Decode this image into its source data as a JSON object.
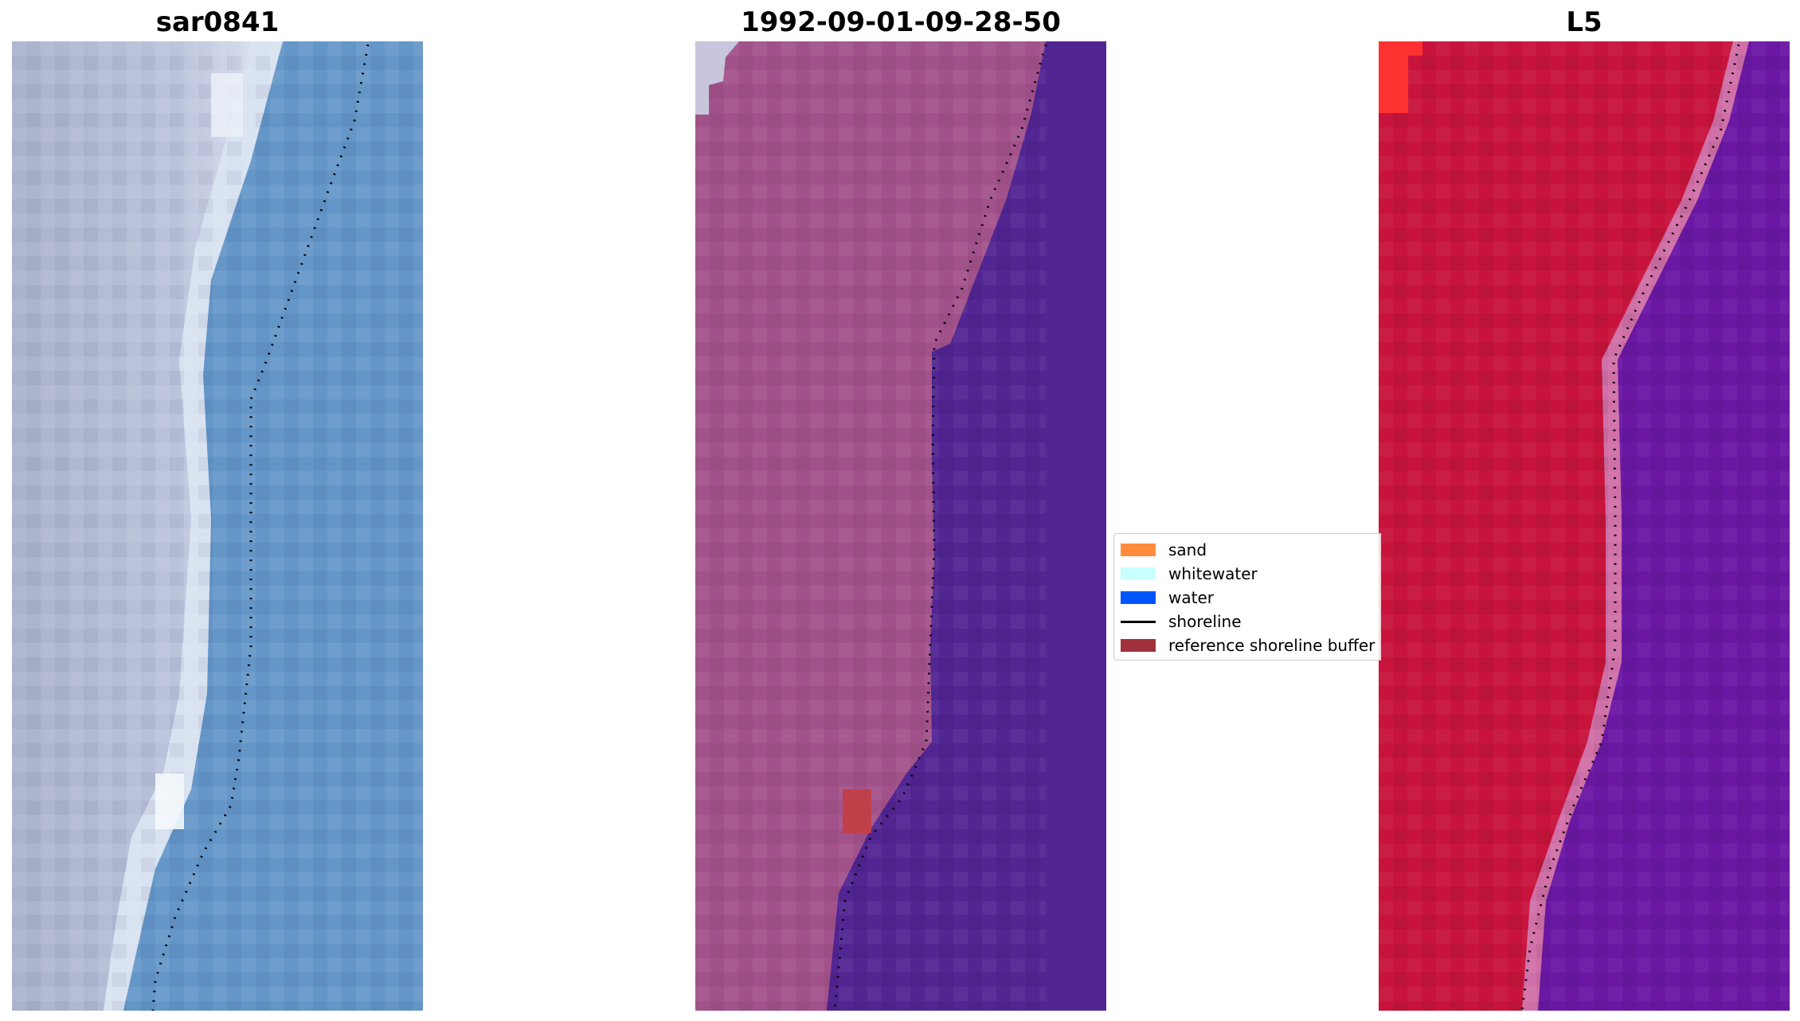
{
  "panels": [
    {
      "title": "sar0841"
    },
    {
      "title": "1992-09-01-09-28-50"
    },
    {
      "title": "L5"
    }
  ],
  "legend": {
    "items": [
      {
        "label": "sand",
        "color": "#ff8c3c",
        "kind": "patch"
      },
      {
        "label": "whitewater",
        "color": "#c8ffff",
        "kind": "patch"
      },
      {
        "label": "water",
        "color": "#0055ff",
        "kind": "patch"
      },
      {
        "label": "shoreline",
        "color": "#000000",
        "kind": "line"
      },
      {
        "label": "reference shoreline buffer",
        "color": "#a0303a",
        "kind": "patch"
      }
    ]
  },
  "colors": {
    "panel1_land": "#b4bcd4",
    "panel1_surf": "#e8eef6",
    "panel1_sea": "#6496c8",
    "panel2_land": "#a2528a",
    "panel2_sea": "#512592",
    "panel2_buffer": "#c0404a",
    "panel3_land": "#c8143c",
    "panel3_surf": "#d070a8",
    "panel3_sea": "#6a18a4",
    "panel3_corner": "#ff3232"
  }
}
